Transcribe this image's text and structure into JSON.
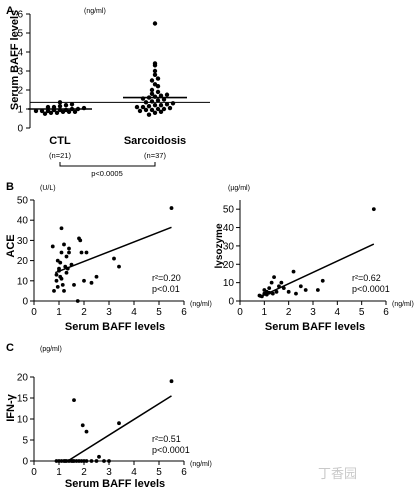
{
  "chart_data": [
    {
      "panel": "A",
      "type": "scatter",
      "ylabel": "Serum BAFF levels",
      "y_unit": "(ng/ml)",
      "ylim": [
        0,
        6
      ],
      "yticks": [
        "0",
        "1",
        "2",
        "3",
        "4",
        "5",
        "6"
      ],
      "categories": [
        "CTL",
        "Sarcoidosis"
      ],
      "ns": [
        "(n=21)",
        "(n=37)"
      ],
      "pvalue": "p<0.0005",
      "reference_line": 1.35,
      "groups": [
        {
          "name": "CTL",
          "mean": 1.0,
          "values": [
            0.75,
            0.8,
            0.8,
            0.85,
            0.85,
            0.85,
            0.9,
            0.9,
            0.9,
            0.95,
            0.95,
            0.95,
            1.0,
            1.0,
            1.05,
            1.1,
            1.1,
            1.15,
            1.2,
            1.25,
            1.35
          ]
        },
        {
          "name": "Sarcoidosis",
          "mean": 1.6,
          "values": [
            0.7,
            0.8,
            0.85,
            0.9,
            0.95,
            0.95,
            1.0,
            1.0,
            1.05,
            1.1,
            1.1,
            1.15,
            1.2,
            1.2,
            1.25,
            1.3,
            1.35,
            1.4,
            1.45,
            1.5,
            1.55,
            1.6,
            1.65,
            1.7,
            1.75,
            1.8,
            1.9,
            2.0,
            2.2,
            2.3,
            2.5,
            2.6,
            2.8,
            3.0,
            3.3,
            3.4,
            5.5
          ]
        }
      ]
    },
    {
      "panel": "B",
      "type": "scatter",
      "ylabel": "ACE",
      "y_unit": "(U/L)",
      "x_unit": "(ng/ml)",
      "xlabel": "Serum BAFF levels",
      "xlim": [
        0,
        6
      ],
      "ylim": [
        0,
        50
      ],
      "xticks": [
        "0",
        "1",
        "2",
        "3",
        "4",
        "5",
        "6"
      ],
      "yticks": [
        "0",
        "10",
        "20",
        "30",
        "40",
        "50"
      ],
      "stat_r2": "r²=0.20",
      "stat_p": "p<0.01",
      "regression": {
        "x": [
          0.85,
          5.5
        ],
        "y": [
          14,
          36.5
        ]
      },
      "points": [
        [
          0.75,
          27
        ],
        [
          0.8,
          5
        ],
        [
          0.9,
          13
        ],
        [
          0.9,
          10
        ],
        [
          0.95,
          20
        ],
        [
          0.95,
          7
        ],
        [
          1.0,
          16
        ],
        [
          1.0,
          15
        ],
        [
          1.05,
          12
        ],
        [
          1.05,
          19
        ],
        [
          1.1,
          24
        ],
        [
          1.1,
          36
        ],
        [
          1.1,
          11
        ],
        [
          1.15,
          8
        ],
        [
          1.2,
          28
        ],
        [
          1.2,
          5
        ],
        [
          1.25,
          17
        ],
        [
          1.3,
          14
        ],
        [
          1.3,
          22
        ],
        [
          1.35,
          16
        ],
        [
          1.4,
          24
        ],
        [
          1.4,
          26
        ],
        [
          1.5,
          18
        ],
        [
          1.6,
          8
        ],
        [
          1.75,
          0
        ],
        [
          1.8,
          31
        ],
        [
          1.85,
          30
        ],
        [
          1.9,
          24
        ],
        [
          2.0,
          10
        ],
        [
          2.1,
          24
        ],
        [
          2.3,
          9
        ],
        [
          2.5,
          12
        ],
        [
          3.2,
          21
        ],
        [
          3.4,
          17
        ],
        [
          5.5,
          46
        ]
      ]
    },
    {
      "panel": "B",
      "type": "scatter",
      "ylabel": "lysozyme",
      "y_unit": "(µg/ml)",
      "x_unit": "(ng/ml)",
      "xlabel": "Serum BAFF levels",
      "xlim": [
        0,
        6
      ],
      "ylim": [
        0,
        55
      ],
      "xticks": [
        "0",
        "1",
        "2",
        "3",
        "4",
        "5",
        "6"
      ],
      "yticks": [
        "0",
        "10",
        "20",
        "30",
        "40",
        "50"
      ],
      "stat_r2": "r²=0.62",
      "stat_p": "p<0.0001",
      "regression": {
        "x": [
          0.8,
          5.5
        ],
        "y": [
          2,
          31
        ]
      },
      "points": [
        [
          0.8,
          3
        ],
        [
          0.9,
          2.5
        ],
        [
          1.0,
          6
        ],
        [
          1.0,
          4
        ],
        [
          1.1,
          3.5
        ],
        [
          1.1,
          5
        ],
        [
          1.2,
          4.5
        ],
        [
          1.2,
          7
        ],
        [
          1.3,
          10
        ],
        [
          1.35,
          4
        ],
        [
          1.4,
          13
        ],
        [
          1.5,
          5
        ],
        [
          1.6,
          8
        ],
        [
          1.7,
          10
        ],
        [
          1.8,
          7
        ],
        [
          2.0,
          5
        ],
        [
          2.2,
          16
        ],
        [
          2.3,
          4
        ],
        [
          2.5,
          8
        ],
        [
          2.7,
          6
        ],
        [
          3.2,
          6
        ],
        [
          3.4,
          11
        ],
        [
          5.5,
          50
        ]
      ]
    },
    {
      "panel": "C",
      "type": "scatter",
      "ylabel": "IFN-γ",
      "y_unit": "(pg/ml)",
      "x_unit": "(ng/ml)",
      "xlabel": "Serum BAFF levels",
      "xlim": [
        0,
        6
      ],
      "ylim": [
        0,
        20
      ],
      "xticks": [
        "0",
        "1",
        "2",
        "3",
        "4",
        "5",
        "6"
      ],
      "yticks": [
        "0",
        "5",
        "10",
        "15",
        "20"
      ],
      "stat_r2": "r²=0.51",
      "stat_p": "p<0.0001",
      "regression": {
        "x": [
          1.35,
          5.5
        ],
        "y": [
          0,
          15.5
        ]
      },
      "points": [
        [
          0.9,
          0
        ],
        [
          1.0,
          0
        ],
        [
          1.1,
          0
        ],
        [
          1.2,
          0
        ],
        [
          1.25,
          0
        ],
        [
          1.3,
          0
        ],
        [
          1.4,
          0
        ],
        [
          1.5,
          0
        ],
        [
          1.55,
          0
        ],
        [
          1.6,
          0
        ],
        [
          1.7,
          0
        ],
        [
          1.8,
          0
        ],
        [
          1.9,
          0
        ],
        [
          2.0,
          0
        ],
        [
          2.1,
          0
        ],
        [
          2.3,
          0
        ],
        [
          2.5,
          0
        ],
        [
          2.8,
          0
        ],
        [
          3.0,
          0
        ],
        [
          1.6,
          14.5
        ],
        [
          1.95,
          8.5
        ],
        [
          2.1,
          7
        ],
        [
          2.6,
          1
        ],
        [
          3.4,
          9
        ],
        [
          5.5,
          19
        ]
      ]
    }
  ],
  "panel_labels": [
    "A",
    "B",
    "C"
  ],
  "watermark": "丁香园"
}
